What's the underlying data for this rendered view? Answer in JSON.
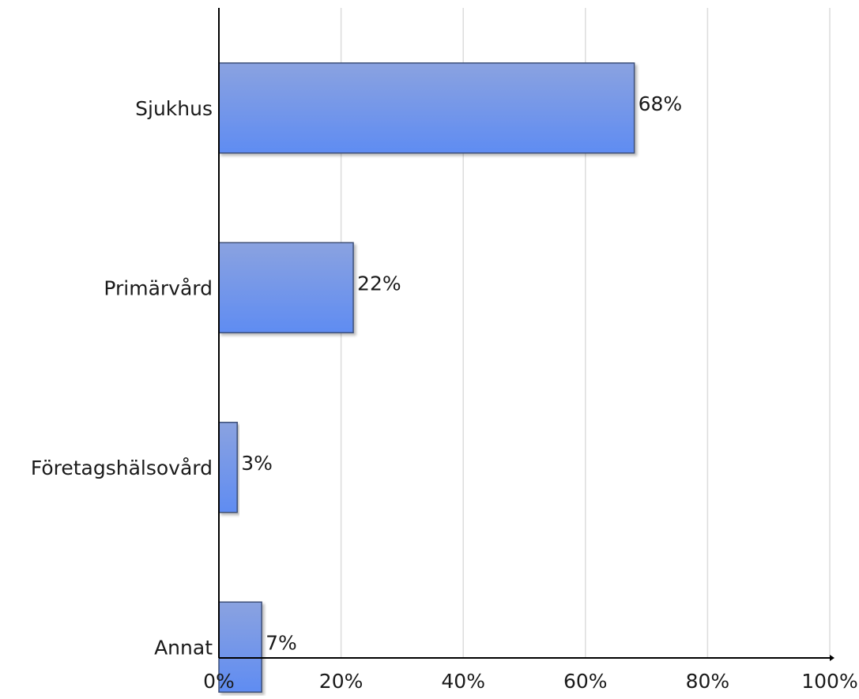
{
  "chart_data": {
    "type": "bar",
    "orientation": "horizontal",
    "categories": [
      "Sjukhus",
      "Primärvård",
      "Företagshälsovård",
      "Annat"
    ],
    "values": [
      68,
      22,
      3,
      7
    ],
    "value_labels": [
      "68%",
      "22%",
      "3%",
      "7%"
    ],
    "xlim": [
      0,
      100
    ],
    "x_ticks": [
      0,
      20,
      40,
      60,
      80,
      100
    ],
    "x_tick_labels": [
      "0%",
      "20%",
      "40%",
      "60%",
      "80%",
      "100%"
    ],
    "grid": "vertical",
    "legend": "none",
    "colors": {
      "bar_top": "#8aa2e0",
      "bar_bottom": "#5f8cf2",
      "bar_edge": "#3d4f78",
      "grid": "#dcdcdc",
      "axis": "#000000"
    }
  }
}
